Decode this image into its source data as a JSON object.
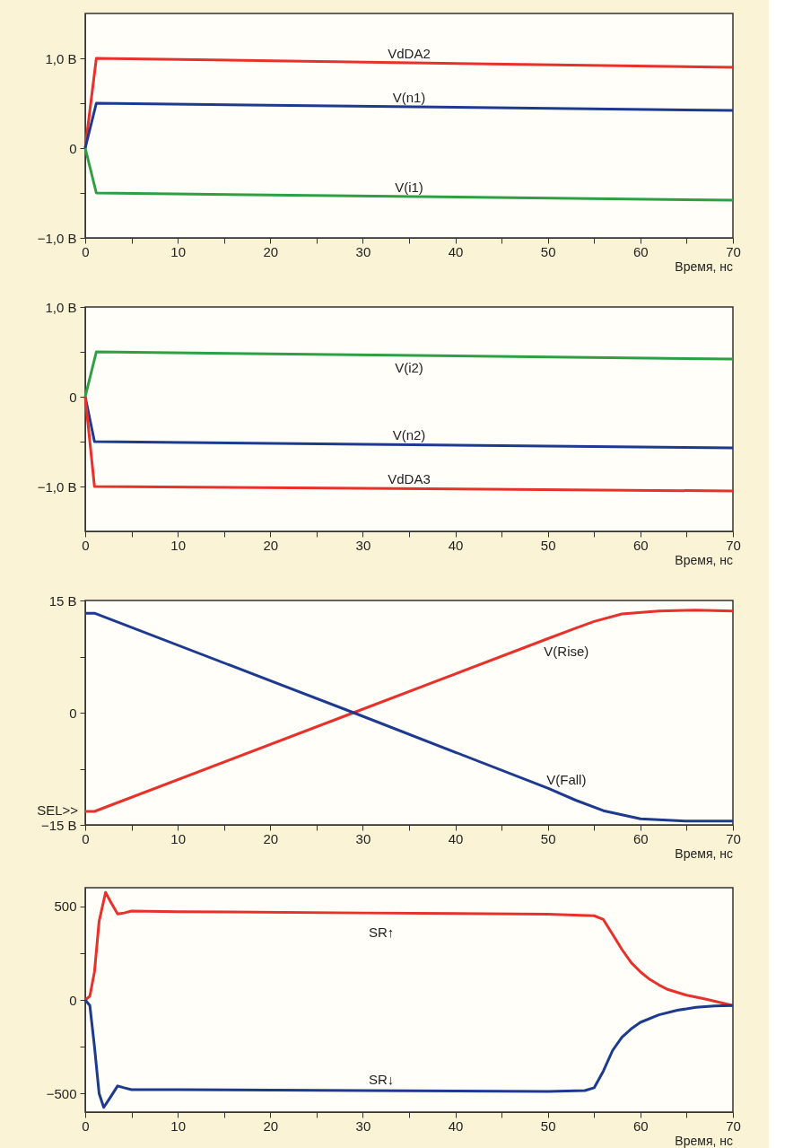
{
  "chart_data": [
    {
      "type": "line",
      "xlabel": "Время, нс",
      "xlim": [
        0,
        70
      ],
      "ylim": [
        -1.0,
        1.5
      ],
      "xticks": [
        0,
        {
          "value": 5,
          "label": null
        },
        10,
        {
          "value": 15,
          "label": null
        },
        20,
        {
          "value": 25,
          "label": null
        },
        30,
        {
          "value": 35,
          "label": null
        },
        40,
        {
          "value": 45,
          "label": null
        },
        50,
        {
          "value": 55,
          "label": null
        },
        60,
        {
          "value": 65,
          "label": null
        },
        70
      ],
      "yticks": [
        {
          "value": -1.0,
          "label": "−1,0 В"
        },
        {
          "value": -0.5,
          "label": null
        },
        0,
        {
          "value": 0.5,
          "label": null
        },
        {
          "value": 1.0,
          "label": "1,0 В"
        }
      ],
      "grid": false,
      "legend": false,
      "series": [
        {
          "name": "VdDA2",
          "color": "#e8312a",
          "x": [
            0,
            1.2,
            70
          ],
          "values": [
            0,
            1.0,
            0.9
          ]
        },
        {
          "name": "V(n1)",
          "color": "#1d3a8f",
          "x": [
            0,
            1.2,
            70
          ],
          "values": [
            0,
            0.5,
            0.42
          ]
        },
        {
          "name": "V(i1)",
          "color": "#2ea043",
          "x": [
            0,
            1.2,
            70
          ],
          "values": [
            0,
            -0.5,
            -0.58
          ]
        }
      ]
    },
    {
      "type": "line",
      "xlabel": "Время, нс",
      "xlim": [
        0,
        70
      ],
      "ylim": [
        -1.5,
        1.0
      ],
      "xticks": [
        0,
        {
          "value": 5,
          "label": null
        },
        10,
        {
          "value": 15,
          "label": null
        },
        20,
        {
          "value": 25,
          "label": null
        },
        30,
        {
          "value": 35,
          "label": null
        },
        40,
        {
          "value": 45,
          "label": null
        },
        50,
        {
          "value": 55,
          "label": null
        },
        60,
        {
          "value": 65,
          "label": null
        },
        70
      ],
      "yticks": [
        {
          "value": -1.0,
          "label": "−1,0 В"
        },
        {
          "value": -0.5,
          "label": null
        },
        0,
        {
          "value": 0.5,
          "label": null
        },
        {
          "value": 1.0,
          "label": "1,0 В"
        }
      ],
      "grid": false,
      "legend": false,
      "series": [
        {
          "name": "V(i2)",
          "color": "#2ea043",
          "x": [
            0,
            1.2,
            70
          ],
          "values": [
            0,
            0.5,
            0.42
          ]
        },
        {
          "name": "V(n2)",
          "color": "#1d3a8f",
          "x": [
            0,
            1.0,
            70
          ],
          "values": [
            0,
            -0.5,
            -0.57
          ]
        },
        {
          "name": "VdDA3",
          "color": "#e8312a",
          "x": [
            0,
            1.0,
            70
          ],
          "values": [
            0,
            -1.0,
            -1.05
          ]
        }
      ]
    },
    {
      "type": "line",
      "xlabel": "Время, нс",
      "xlim": [
        0,
        70
      ],
      "ylim": [
        -15,
        15
      ],
      "xticks": [
        0,
        {
          "value": 5,
          "label": null
        },
        10,
        {
          "value": 15,
          "label": null
        },
        20,
        {
          "value": 25,
          "label": null
        },
        30,
        {
          "value": 35,
          "label": null
        },
        40,
        {
          "value": 45,
          "label": null
        },
        50,
        {
          "value": 55,
          "label": null
        },
        60,
        {
          "value": 65,
          "label": null
        },
        70
      ],
      "yticks": [
        {
          "value": -15,
          "label": "−15 В"
        },
        {
          "value": -7.5,
          "label": null
        },
        0,
        {
          "value": 7.5,
          "label": null
        },
        {
          "value": 15,
          "label": "15 В"
        }
      ],
      "grid": false,
      "legend": false,
      "annotations": [
        "SEL>>"
      ],
      "series": [
        {
          "name": "V(Rise)",
          "color": "#e8312a",
          "x": [
            0,
            1,
            29,
            50,
            53,
            55,
            58,
            62,
            66,
            70
          ],
          "values": [
            -13.2,
            -13.2,
            0,
            9.9,
            11.3,
            12.2,
            13.2,
            13.6,
            13.7,
            13.6
          ]
        },
        {
          "name": "V(Fall)",
          "color": "#1d3a8f",
          "x": [
            0,
            1,
            29,
            50,
            53,
            56,
            60,
            65,
            70
          ],
          "values": [
            13.3,
            13.3,
            0,
            -10.1,
            -11.7,
            -13.1,
            -14.2,
            -14.5,
            -14.5
          ]
        }
      ]
    },
    {
      "type": "line",
      "xlabel": "Время, нс",
      "xlim": [
        0,
        70
      ],
      "ylim": [
        -600,
        600
      ],
      "xticks": [
        0,
        {
          "value": 5,
          "label": null
        },
        10,
        {
          "value": 15,
          "label": null
        },
        20,
        {
          "value": 25,
          "label": null
        },
        30,
        {
          "value": 35,
          "label": null
        },
        40,
        {
          "value": 45,
          "label": null
        },
        50,
        {
          "value": 55,
          "label": null
        },
        60,
        {
          "value": 65,
          "label": null
        },
        70
      ],
      "yticks": [
        {
          "value": -500,
          "label": "−500"
        },
        {
          "value": -250,
          "label": null
        },
        0,
        {
          "value": 250,
          "label": null
        },
        500
      ],
      "grid": false,
      "legend": false,
      "series": [
        {
          "name": "SR↑",
          "color": "#e8312a",
          "x": [
            0,
            0.5,
            1,
            1.5,
            2.2,
            2.8,
            3.5,
            4.2,
            5,
            10,
            30,
            50,
            55,
            56,
            57,
            58,
            59,
            60,
            61,
            62,
            63,
            65,
            67,
            70
          ],
          "values": [
            0,
            20,
            150,
            420,
            575,
            520,
            460,
            465,
            475,
            472,
            465,
            458,
            450,
            430,
            350,
            270,
            200,
            150,
            110,
            80,
            55,
            25,
            5,
            -30
          ]
        },
        {
          "name": "SR↓",
          "color": "#1d3a8f",
          "x": [
            0,
            0.5,
            1,
            1.5,
            2.0,
            2.6,
            3.5,
            4.2,
            5,
            10,
            30,
            50,
            54,
            55,
            56,
            57,
            58,
            59,
            60,
            62,
            64,
            66,
            68,
            70
          ],
          "values": [
            0,
            -30,
            -250,
            -500,
            -575,
            -530,
            -460,
            -470,
            -480,
            -480,
            -485,
            -490,
            -485,
            -470,
            -380,
            -270,
            -200,
            -155,
            -120,
            -80,
            -55,
            -40,
            -32,
            -30
          ]
        }
      ]
    }
  ]
}
